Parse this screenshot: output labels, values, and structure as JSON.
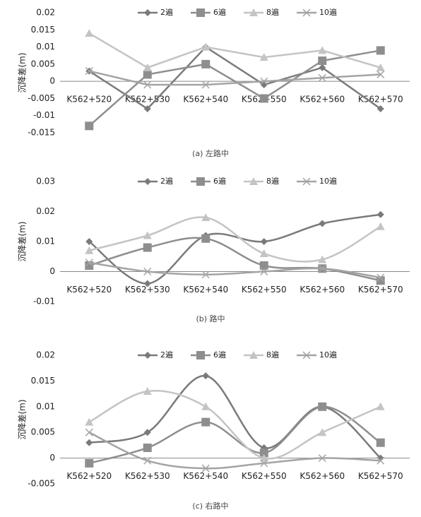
{
  "chart_data": [
    {
      "type": "line",
      "smooth": false,
      "ylabel": "沉降差(m)",
      "caption": "(a) 左路中",
      "categories": [
        "K562+520",
        "K562+530",
        "K562+540",
        "K562+550",
        "K562+560",
        "K562+570"
      ],
      "ylim": [
        -0.015,
        0.02
      ],
      "yticks": [
        -0.015,
        -0.01,
        -0.005,
        0,
        0.005,
        0.01,
        0.015,
        0.02
      ],
      "series": [
        {
          "name": "2遍",
          "color": "#7a7a7a",
          "marker": "diamond",
          "values": [
            0.003,
            -0.008,
            0.01,
            -0.001,
            0.004,
            -0.008
          ]
        },
        {
          "name": "6遍",
          "color": "#8e8e8e",
          "marker": "square",
          "values": [
            -0.013,
            0.002,
            0.005,
            -0.005,
            0.006,
            0.009
          ]
        },
        {
          "name": "8遍",
          "color": "#c4c4c4",
          "marker": "triangle",
          "values": [
            0.014,
            0.004,
            0.01,
            0.007,
            0.009,
            0.004
          ]
        },
        {
          "name": "10遍",
          "color": "#a4a4a4",
          "marker": "x",
          "values": [
            0.003,
            -0.001,
            -0.001,
            0,
            0.001,
            0.002
          ]
        }
      ]
    },
    {
      "type": "line",
      "smooth": true,
      "ylabel": "沉降差(m)",
      "caption": "(b) 路中",
      "categories": [
        "K562+520",
        "K562+530",
        "K562+540",
        "K562+550",
        "K562+560",
        "K562+570"
      ],
      "ylim": [
        -0.01,
        0.03
      ],
      "yticks": [
        -0.01,
        0,
        0.01,
        0.02,
        0.03
      ],
      "series": [
        {
          "name": "2遍",
          "color": "#7a7a7a",
          "marker": "diamond",
          "values": [
            0.01,
            -0.004,
            0.012,
            0.01,
            0.016,
            0.019
          ]
        },
        {
          "name": "6遍",
          "color": "#8e8e8e",
          "marker": "square",
          "values": [
            0.002,
            0.008,
            0.011,
            0.002,
            0.001,
            -0.003
          ]
        },
        {
          "name": "8遍",
          "color": "#c4c4c4",
          "marker": "triangle",
          "values": [
            0.007,
            0.012,
            0.018,
            0.006,
            0.004,
            0.015
          ]
        },
        {
          "name": "10遍",
          "color": "#a4a4a4",
          "marker": "x",
          "values": [
            0.003,
            0,
            -0.001,
            0,
            0.001,
            -0.002
          ]
        }
      ]
    },
    {
      "type": "line",
      "smooth": true,
      "ylabel": "沉降差(m)",
      "caption": "(c) 右路中",
      "categories": [
        "K562+520",
        "K562+530",
        "K562+540",
        "K562+550",
        "K562+560",
        "K562+570"
      ],
      "ylim": [
        -0.005,
        0.02
      ],
      "yticks": [
        -0.005,
        0,
        0.005,
        0.01,
        0.015,
        0.02
      ],
      "series": [
        {
          "name": "2遍",
          "color": "#7a7a7a",
          "marker": "diamond",
          "values": [
            0.003,
            0.005,
            0.016,
            0.002,
            0.01,
            0
          ]
        },
        {
          "name": "6遍",
          "color": "#8e8e8e",
          "marker": "square",
          "values": [
            -0.001,
            0.002,
            0.007,
            0.001,
            0.01,
            0.003
          ]
        },
        {
          "name": "8遍",
          "color": "#c4c4c4",
          "marker": "triangle",
          "values": [
            0.007,
            0.013,
            0.01,
            0,
            0.005,
            0.01
          ]
        },
        {
          "name": "10遍",
          "color": "#a4a4a4",
          "marker": "x",
          "values": [
            0.005,
            -0.0005,
            -0.002,
            -0.001,
            0,
            -0.0005
          ]
        }
      ]
    }
  ]
}
